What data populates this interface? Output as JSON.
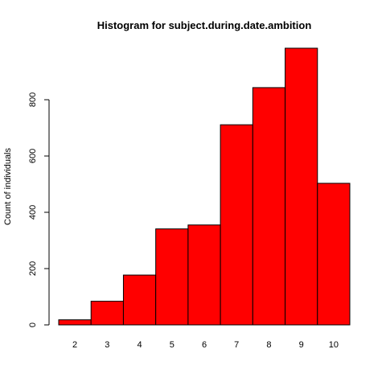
{
  "chart_data": {
    "type": "bar",
    "title": "Histogram for subject.during.date.ambition",
    "xlabel": "",
    "ylabel": "Count of individuals",
    "categories": [
      "2",
      "3",
      "4",
      "5",
      "6",
      "7",
      "8",
      "9",
      "10"
    ],
    "values": [
      18,
      84,
      177,
      341,
      355,
      711,
      843,
      983,
      503
    ],
    "ylim": [
      0,
      1000
    ],
    "y_ticks": [
      0,
      200,
      400,
      600,
      800
    ],
    "bar_color": "#ff0000",
    "bar_border_color": "#000000",
    "grid": false,
    "legend": "none"
  }
}
